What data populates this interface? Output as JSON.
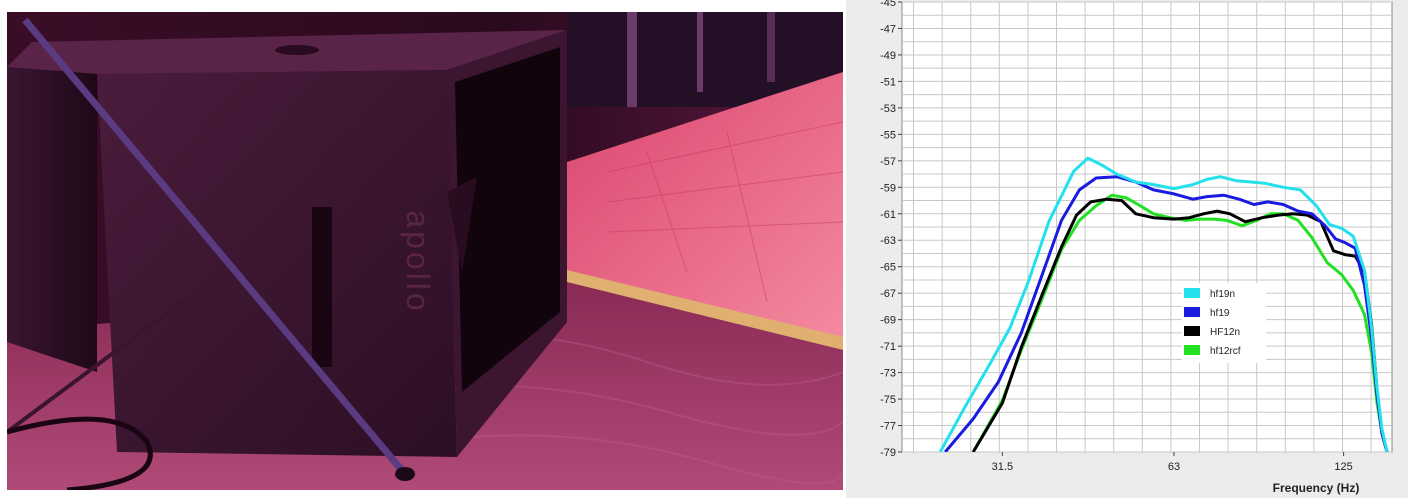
{
  "photo": {
    "subject": "subwoofer cabinet on carpet under magenta stage lighting with a stand pole",
    "brand_mark": "apollo",
    "colors": {
      "background": "#2a0b1d",
      "cabinet": "#3a1530",
      "floor_wood": "#f0708a",
      "carpet": "#7a1f4a"
    }
  },
  "chart_data": {
    "type": "line",
    "xlabel": "Frequency (Hz)",
    "ylabel": "",
    "x_scale": "log",
    "xlim": [
      21,
      152
    ],
    "ylim": [
      -79,
      -45
    ],
    "x_ticks": [
      31.5,
      63,
      125
    ],
    "x_tick_labels": [
      "31.5",
      "63",
      "125"
    ],
    "y_ticks": [
      -45,
      -47,
      -49,
      -51,
      -53,
      -55,
      -57,
      -59,
      -61,
      -63,
      -65,
      -67,
      -69,
      -71,
      -73,
      -75,
      -77,
      -79
    ],
    "y_tick_labels": [
      "-45",
      "-47",
      "-49",
      "-51",
      "-53",
      "-55",
      "-57",
      "-59",
      "-61",
      "-63",
      "-65",
      "-67",
      "-69",
      "-71",
      "-73",
      "-75",
      "-77",
      "-79"
    ],
    "grid": true,
    "legend_position": "center-right",
    "series": [
      {
        "name": "hf19n",
        "color": "#22e0ec",
        "x": [
          24.5,
          27,
          30,
          32.5,
          35,
          38,
          42,
          44.5,
          47,
          50,
          54,
          58,
          63,
          68,
          72,
          76,
          81,
          86,
          91,
          98,
          105,
          112,
          118,
          124,
          130,
          136,
          140,
          143,
          146,
          149
        ],
        "y": [
          -79.0,
          -75.7,
          -72.3,
          -69.6,
          -66.1,
          -61.6,
          -57.8,
          -56.8,
          -57.3,
          -58.0,
          -58.6,
          -58.8,
          -59.1,
          -58.8,
          -58.4,
          -58.2,
          -58.5,
          -58.6,
          -58.7,
          -59.0,
          -59.2,
          -60.4,
          -61.8,
          -62.1,
          -62.7,
          -65.3,
          -69.6,
          -74.1,
          -77.3,
          -79.0
        ]
      },
      {
        "name": "hf19",
        "color": "#1a1ae0",
        "x": [
          25,
          28,
          31,
          34,
          37,
          40,
          43,
          46,
          50,
          54,
          58,
          63,
          68,
          72,
          77,
          82,
          87,
          92,
          98,
          104,
          110,
          116,
          121,
          126,
          131,
          136,
          140,
          143,
          146,
          149
        ],
        "y": [
          -79.0,
          -76.5,
          -73.7,
          -70.0,
          -65.6,
          -61.5,
          -59.2,
          -58.3,
          -58.2,
          -58.6,
          -59.2,
          -59.5,
          -59.9,
          -59.7,
          -59.6,
          -59.9,
          -60.3,
          -60.1,
          -60.3,
          -60.8,
          -61.0,
          -61.9,
          -62.9,
          -63.2,
          -63.6,
          -66.4,
          -70.4,
          -74.6,
          -77.6,
          -79.0
        ]
      },
      {
        "name": "HF12n",
        "color": "#000000",
        "x": [
          28,
          31.5,
          34,
          37,
          40,
          42.5,
          45,
          48,
          51,
          54,
          58,
          63,
          67,
          71,
          75,
          79,
          84,
          90,
          96,
          102,
          108,
          114,
          120,
          126,
          131,
          136,
          140,
          143,
          146,
          149
        ],
        "y": [
          -79.0,
          -75.3,
          -71.1,
          -67.1,
          -63.5,
          -61.1,
          -60.1,
          -59.9,
          -60.0,
          -61.0,
          -61.3,
          -61.4,
          -61.3,
          -61.0,
          -60.8,
          -61.0,
          -61.6,
          -61.3,
          -61.1,
          -61.0,
          -61.1,
          -61.6,
          -63.8,
          -64.1,
          -64.2,
          -65.4,
          -69.4,
          -74.2,
          -77.6,
          -79.0
        ]
      },
      {
        "name": "hf12rcf",
        "color": "#22e022",
        "x": [
          28,
          31.5,
          34,
          37,
          40,
          43,
          46,
          49,
          52,
          55,
          58,
          62,
          66,
          70,
          74,
          78,
          83,
          88,
          93,
          98,
          104,
          110,
          117,
          124,
          130,
          136,
          140,
          143,
          146,
          149
        ],
        "y": [
          -79.0,
          -75.1,
          -71.3,
          -67.4,
          -63.7,
          -61.5,
          -60.4,
          -59.6,
          -59.8,
          -60.4,
          -61.0,
          -61.3,
          -61.5,
          -61.4,
          -61.4,
          -61.5,
          -61.9,
          -61.5,
          -61.0,
          -61.0,
          -61.5,
          -62.8,
          -64.7,
          -65.6,
          -66.8,
          -68.6,
          -71.5,
          -75.2,
          -77.6,
          -79.0
        ]
      }
    ]
  }
}
